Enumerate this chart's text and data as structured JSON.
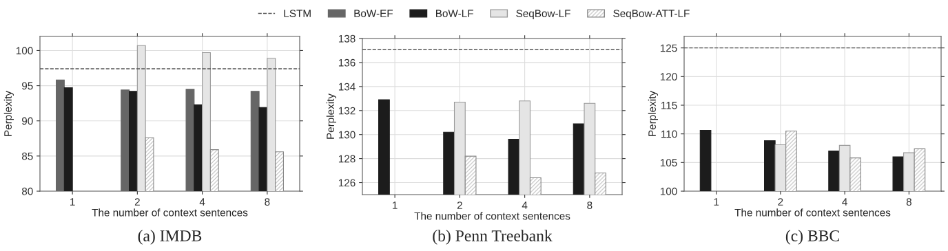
{
  "chart_data": [
    {
      "type": "bar",
      "title": "(a) IMDB",
      "xlabel": "The number of context sentences",
      "ylabel": "Perplexity",
      "categories": [
        "1",
        "2",
        "4",
        "8"
      ],
      "ylim": [
        80,
        102
      ],
      "yticks": [
        80,
        85,
        90,
        95,
        100
      ],
      "grid": true,
      "legend": "top",
      "series": [
        {
          "name": "BoW-EF",
          "color": "#666666",
          "values": [
            95.8,
            94.4,
            94.5,
            94.2
          ]
        },
        {
          "name": "BoW-LF",
          "color": "#1c1c1c",
          "values": [
            94.7,
            94.2,
            92.3,
            91.9
          ]
        },
        {
          "name": "SeqBow-LF",
          "color": "#e5e5e5",
          "values": [
            null,
            100.7,
            99.7,
            98.9
          ]
        },
        {
          "name": "SeqBow-ATT-LF",
          "color": "#888888",
          "values": [
            null,
            87.6,
            85.9,
            85.6
          ]
        }
      ],
      "ref_lines": [
        {
          "axis": "y",
          "value": 97.4,
          "label": "LSTM",
          "color": "#555555",
          "line_style": "dashed"
        }
      ]
    },
    {
      "type": "bar",
      "title": "(b) Penn Treebank",
      "xlabel": "The number of context sentences",
      "ylabel": "Perplexity",
      "categories": [
        "1",
        "2",
        "4",
        "8"
      ],
      "ylim": [
        125,
        138
      ],
      "yticks": [
        126,
        128,
        130,
        132,
        134,
        136,
        138
      ],
      "grid": true,
      "legend": "top",
      "series": [
        {
          "name": "BoW-LF",
          "color": "#1c1c1c",
          "values": [
            132.9,
            130.2,
            129.6,
            130.9
          ]
        },
        {
          "name": "SeqBow-LF",
          "color": "#e5e5e5",
          "values": [
            null,
            132.7,
            132.8,
            132.6
          ]
        },
        {
          "name": "SeqBow-ATT-LF",
          "color": "#888888",
          "values": [
            null,
            128.2,
            126.4,
            126.8
          ]
        }
      ],
      "ref_lines": [
        {
          "axis": "y",
          "value": 137.1,
          "color": "#555555",
          "line_style": "dashed"
        }
      ]
    },
    {
      "type": "bar",
      "title": "(c) BBC",
      "xlabel": "The number of context sentences",
      "ylabel": "Perplexity",
      "categories": [
        "1",
        "2",
        "4",
        "8"
      ],
      "ylim": [
        100,
        127
      ],
      "yticks": [
        100,
        105,
        110,
        115,
        120,
        125
      ],
      "grid": true,
      "legend": "top",
      "series": [
        {
          "name": "BoW-LF",
          "color": "#1c1c1c",
          "values": [
            110.6,
            108.8,
            107.0,
            106.0
          ]
        },
        {
          "name": "SeqBow-LF",
          "color": "#e5e5e5",
          "values": [
            null,
            108.1,
            108.0,
            106.7
          ]
        },
        {
          "name": "SeqBow-ATT-LF",
          "color": "#888888",
          "values": [
            null,
            110.5,
            105.8,
            107.4
          ]
        }
      ],
      "ref_lines": [
        {
          "axis": "y",
          "value": 125.0,
          "color": "#555555",
          "line_style": "dashed"
        }
      ]
    }
  ]
}
